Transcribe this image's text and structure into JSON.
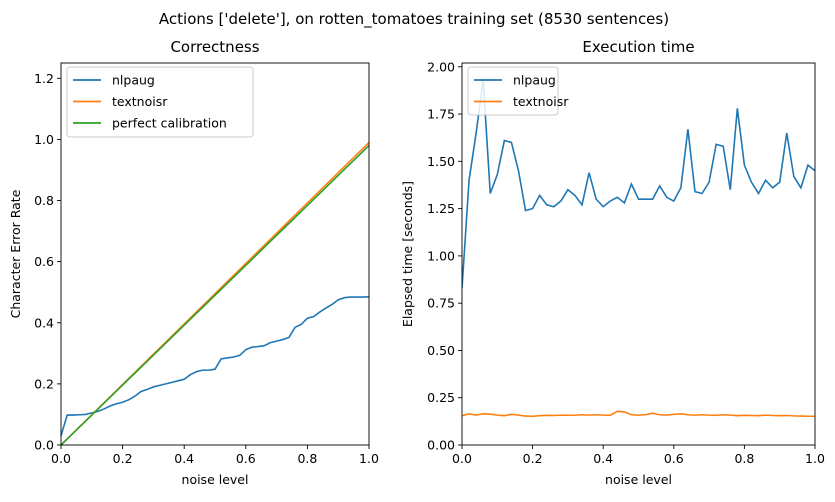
{
  "figure": {
    "title": "Actions ['delete'], on rotten_tomatoes training set (8530 sentences)"
  },
  "chart_data": [
    {
      "type": "line",
      "title": "Correctness",
      "xlabel": "noise level",
      "ylabel": "Character Error Rate",
      "xlim": [
        0.0,
        1.0
      ],
      "ylim": [
        0.0,
        1.25
      ],
      "xticks": [
        "0.0",
        "0.2",
        "0.4",
        "0.6",
        "0.8",
        "1.0"
      ],
      "yticks": [
        "0.0",
        "0.2",
        "0.4",
        "0.6",
        "0.8",
        "1.0",
        "1.2"
      ],
      "xtick_values": [
        0.0,
        0.2,
        0.4,
        0.6,
        0.8,
        1.0
      ],
      "ytick_values": [
        0.0,
        0.2,
        0.4,
        0.6,
        0.8,
        1.0,
        1.2
      ],
      "grid": false,
      "legend": "top-left",
      "x": [
        0.0,
        0.02,
        0.04,
        0.06,
        0.08,
        0.1,
        0.12,
        0.14,
        0.16,
        0.18,
        0.2,
        0.22,
        0.24,
        0.26,
        0.28,
        0.3,
        0.32,
        0.34,
        0.36,
        0.38,
        0.4,
        0.42,
        0.44,
        0.46,
        0.48,
        0.5,
        0.52,
        0.54,
        0.56,
        0.58,
        0.6,
        0.62,
        0.64,
        0.66,
        0.68,
        0.7,
        0.72,
        0.74,
        0.76,
        0.78,
        0.8,
        0.82,
        0.84,
        0.86,
        0.88,
        0.9,
        0.92,
        0.94,
        0.96,
        0.98,
        1.0
      ],
      "series": [
        {
          "name": "nlpaug",
          "color": "#1f77b4",
          "values": [
            0.03,
            0.098,
            0.098,
            0.099,
            0.1,
            0.105,
            0.11,
            0.118,
            0.128,
            0.135,
            0.14,
            0.148,
            0.16,
            0.175,
            0.182,
            0.19,
            0.195,
            0.2,
            0.205,
            0.21,
            0.215,
            0.23,
            0.24,
            0.245,
            0.245,
            0.248,
            0.282,
            0.285,
            0.288,
            0.293,
            0.312,
            0.32,
            0.322,
            0.325,
            0.335,
            0.34,
            0.345,
            0.352,
            0.385,
            0.395,
            0.415,
            0.42,
            0.435,
            0.448,
            0.46,
            0.475,
            0.482,
            0.484,
            0.484,
            0.484,
            0.485
          ]
        },
        {
          "name": "textnoisr",
          "color": "#ff7f0e",
          "values": [
            0.0,
            0.0198,
            0.0396,
            0.0594,
            0.0792,
            0.099,
            0.1188,
            0.1386,
            0.1584,
            0.1782,
            0.198,
            0.2178,
            0.2376,
            0.2574,
            0.2772,
            0.297,
            0.3168,
            0.3366,
            0.3564,
            0.3762,
            0.396,
            0.4158,
            0.4356,
            0.4554,
            0.4752,
            0.495,
            0.5148,
            0.5346,
            0.5544,
            0.5742,
            0.594,
            0.6138,
            0.6336,
            0.6534,
            0.6732,
            0.693,
            0.7128,
            0.7326,
            0.7524,
            0.7722,
            0.792,
            0.8118,
            0.8316,
            0.8514,
            0.8712,
            0.891,
            0.9108,
            0.9306,
            0.9504,
            0.9702,
            0.99
          ]
        },
        {
          "name": " perfect calibration",
          "color": "#2ca02c",
          "values": [
            0.0,
            0.0196,
            0.0392,
            0.0588,
            0.0784,
            0.098,
            0.1176,
            0.1372,
            0.1568,
            0.1764,
            0.196,
            0.2156,
            0.2352,
            0.2548,
            0.2744,
            0.294,
            0.3136,
            0.3332,
            0.3528,
            0.3724,
            0.392,
            0.4116,
            0.4312,
            0.4508,
            0.4704,
            0.49,
            0.5096,
            0.5292,
            0.5488,
            0.5684,
            0.588,
            0.6076,
            0.6272,
            0.6468,
            0.6664,
            0.686,
            0.7056,
            0.7252,
            0.7448,
            0.7644,
            0.784,
            0.8036,
            0.8232,
            0.8428,
            0.8624,
            0.882,
            0.9016,
            0.9212,
            0.9408,
            0.9604,
            0.98
          ]
        }
      ]
    },
    {
      "type": "line",
      "title": "Execution time",
      "xlabel": "noise level",
      "ylabel": "Elapsed time [seconds]",
      "xlim": [
        0.0,
        1.0
      ],
      "ylim": [
        0.0,
        2.02
      ],
      "xticks": [
        "0.0",
        "0.2",
        "0.4",
        "0.6",
        "0.8",
        "1.0"
      ],
      "yticks": [
        "0.00",
        "0.25",
        "0.50",
        "0.75",
        "1.00",
        "1.25",
        "1.50",
        "1.75",
        "2.00"
      ],
      "xtick_values": [
        0.0,
        0.2,
        0.4,
        0.6,
        0.8,
        1.0
      ],
      "ytick_values": [
        0.0,
        0.25,
        0.5,
        0.75,
        1.0,
        1.25,
        1.5,
        1.75,
        2.0
      ],
      "grid": false,
      "legend": "top-left",
      "x": [
        0.0,
        0.02,
        0.04,
        0.06,
        0.08,
        0.1,
        0.12,
        0.14,
        0.16,
        0.18,
        0.2,
        0.22,
        0.24,
        0.26,
        0.28,
        0.3,
        0.32,
        0.34,
        0.36,
        0.38,
        0.4,
        0.42,
        0.44,
        0.46,
        0.48,
        0.5,
        0.52,
        0.54,
        0.56,
        0.58,
        0.6,
        0.62,
        0.64,
        0.66,
        0.68,
        0.7,
        0.72,
        0.74,
        0.76,
        0.78,
        0.8,
        0.82,
        0.84,
        0.86,
        0.88,
        0.9,
        0.92,
        0.94,
        0.96,
        0.98,
        1.0
      ],
      "series": [
        {
          "name": "nlpaug",
          "color": "#1f77b4",
          "values": [
            0.83,
            1.4,
            1.65,
            1.93,
            1.33,
            1.43,
            1.61,
            1.6,
            1.45,
            1.24,
            1.25,
            1.32,
            1.27,
            1.26,
            1.29,
            1.35,
            1.32,
            1.27,
            1.44,
            1.3,
            1.26,
            1.29,
            1.31,
            1.28,
            1.38,
            1.3,
            1.3,
            1.3,
            1.37,
            1.31,
            1.29,
            1.36,
            1.67,
            1.34,
            1.33,
            1.39,
            1.59,
            1.58,
            1.35,
            1.78,
            1.48,
            1.39,
            1.33,
            1.4,
            1.36,
            1.39,
            1.65,
            1.42,
            1.36,
            1.48,
            1.45
          ]
        },
        {
          "name": "textnoisr",
          "color": "#ff7f0e",
          "values": [
            0.155,
            0.165,
            0.158,
            0.165,
            0.163,
            0.158,
            0.155,
            0.162,
            0.158,
            0.153,
            0.152,
            0.155,
            0.157,
            0.156,
            0.158,
            0.157,
            0.158,
            0.16,
            0.158,
            0.16,
            0.158,
            0.157,
            0.178,
            0.175,
            0.16,
            0.158,
            0.16,
            0.168,
            0.16,
            0.158,
            0.162,
            0.165,
            0.16,
            0.158,
            0.16,
            0.158,
            0.157,
            0.16,
            0.158,
            0.155,
            0.157,
            0.156,
            0.155,
            0.158,
            0.156,
            0.155,
            0.156,
            0.154,
            0.153,
            0.152,
            0.152
          ]
        }
      ]
    }
  ]
}
